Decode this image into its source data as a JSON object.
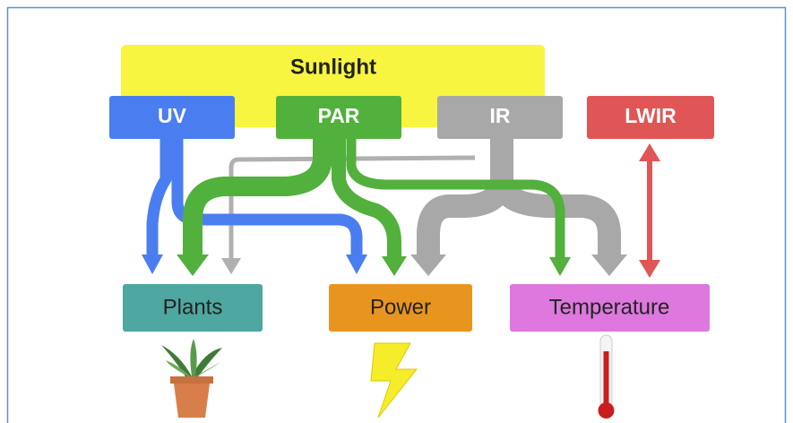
{
  "sources": {
    "sunlight": "Sunlight",
    "uv": "UV",
    "par": "PAR",
    "ir": "IR",
    "lwir": "LWIR"
  },
  "targets": {
    "plants": "Plants",
    "power": "Power",
    "temperature": "Temperature"
  }
}
